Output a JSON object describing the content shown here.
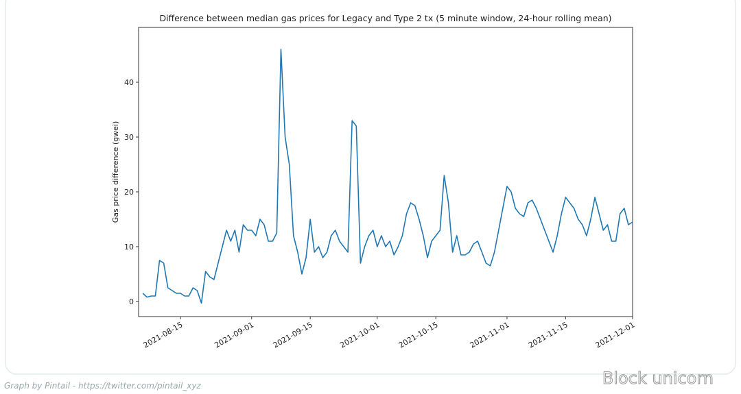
{
  "chart_data": {
    "type": "line",
    "title": "Difference between median gas prices for Legacy and Type 2 tx (5 minute window, 24-hour rolling mean)",
    "y_label": "Gas price difference (gwei)",
    "x": [
      "2021-08-06",
      "2021-08-07",
      "2021-08-08",
      "2021-08-09",
      "2021-08-10",
      "2021-08-11",
      "2021-08-12",
      "2021-08-13",
      "2021-08-14",
      "2021-08-15",
      "2021-08-16",
      "2021-08-17",
      "2021-08-18",
      "2021-08-19",
      "2021-08-20",
      "2021-08-21",
      "2021-08-22",
      "2021-08-23",
      "2021-08-24",
      "2021-08-25",
      "2021-08-26",
      "2021-08-27",
      "2021-08-28",
      "2021-08-29",
      "2021-08-30",
      "2021-08-31",
      "2021-09-01",
      "2021-09-02",
      "2021-09-03",
      "2021-09-04",
      "2021-09-05",
      "2021-09-06",
      "2021-09-07",
      "2021-09-08",
      "2021-09-09",
      "2021-09-10",
      "2021-09-11",
      "2021-09-12",
      "2021-09-13",
      "2021-09-14",
      "2021-09-15",
      "2021-09-16",
      "2021-09-17",
      "2021-09-18",
      "2021-09-19",
      "2021-09-20",
      "2021-09-21",
      "2021-09-22",
      "2021-09-23",
      "2021-09-24",
      "2021-09-25",
      "2021-09-26",
      "2021-09-27",
      "2021-09-28",
      "2021-09-29",
      "2021-09-30",
      "2021-10-01",
      "2021-10-02",
      "2021-10-03",
      "2021-10-04",
      "2021-10-05",
      "2021-10-06",
      "2021-10-07",
      "2021-10-08",
      "2021-10-09",
      "2021-10-10",
      "2021-10-11",
      "2021-10-12",
      "2021-10-13",
      "2021-10-14",
      "2021-10-15",
      "2021-10-16",
      "2021-10-17",
      "2021-10-18",
      "2021-10-19",
      "2021-10-20",
      "2021-10-21",
      "2021-10-22",
      "2021-10-23",
      "2021-10-24",
      "2021-10-25",
      "2021-10-26",
      "2021-10-27",
      "2021-10-28",
      "2021-10-29",
      "2021-10-30",
      "2021-10-31",
      "2021-11-01",
      "2021-11-02",
      "2021-11-03",
      "2021-11-04",
      "2021-11-05",
      "2021-11-06",
      "2021-11-07",
      "2021-11-08",
      "2021-11-09",
      "2021-11-10",
      "2021-11-11",
      "2021-11-12",
      "2021-11-13",
      "2021-11-14",
      "2021-11-15",
      "2021-11-16",
      "2021-11-17",
      "2021-11-18",
      "2021-11-19",
      "2021-11-20",
      "2021-11-21",
      "2021-11-22",
      "2021-11-23",
      "2021-11-24",
      "2021-11-25",
      "2021-11-26",
      "2021-11-27",
      "2021-11-28",
      "2021-11-29",
      "2021-11-30",
      "2021-12-01"
    ],
    "values": [
      1.5,
      0.8,
      1,
      1,
      7.5,
      7,
      2.5,
      2,
      1.5,
      1.5,
      1,
      1,
      2.5,
      2,
      -0.3,
      5.5,
      4.5,
      4,
      7,
      10,
      13,
      11,
      13,
      9,
      14,
      13,
      13,
      12,
      15,
      14,
      11,
      11,
      12.5,
      46,
      30,
      25,
      12,
      9,
      5,
      8,
      15,
      9,
      10,
      8,
      9,
      12,
      13,
      11,
      10,
      9,
      33,
      32,
      7,
      10,
      12,
      13,
      10,
      12,
      10,
      11,
      8.5,
      10,
      12,
      16,
      18,
      17.5,
      15,
      12,
      8,
      11,
      12,
      13,
      23,
      18,
      9,
      12,
      8.5,
      8.5,
      9,
      10.5,
      11,
      9,
      7,
      6.5,
      9,
      13,
      17,
      21,
      20,
      17,
      16,
      15.5,
      18,
      18.5,
      17,
      15,
      13,
      11,
      9,
      12,
      16,
      19,
      18,
      17,
      15,
      14,
      12,
      15,
      19,
      16,
      13,
      14,
      11,
      11,
      16,
      17,
      14,
      14.5
    ],
    "color": "#1f77b4",
    "xlim": [
      "2021-08-05",
      "2021-12-01"
    ],
    "xticks": [
      "2021-08-15",
      "2021-09-01",
      "2021-09-15",
      "2021-10-01",
      "2021-10-15",
      "2021-11-01",
      "2021-11-15",
      "2021-12-01"
    ],
    "ylim": [
      -2.75,
      50
    ],
    "yticks": [
      0,
      10,
      20,
      30,
      40
    ]
  },
  "footer": {
    "credit": "Graph by Pintail - https://twitter.com/pintail_xyz",
    "watermark": "Block unicorn"
  }
}
